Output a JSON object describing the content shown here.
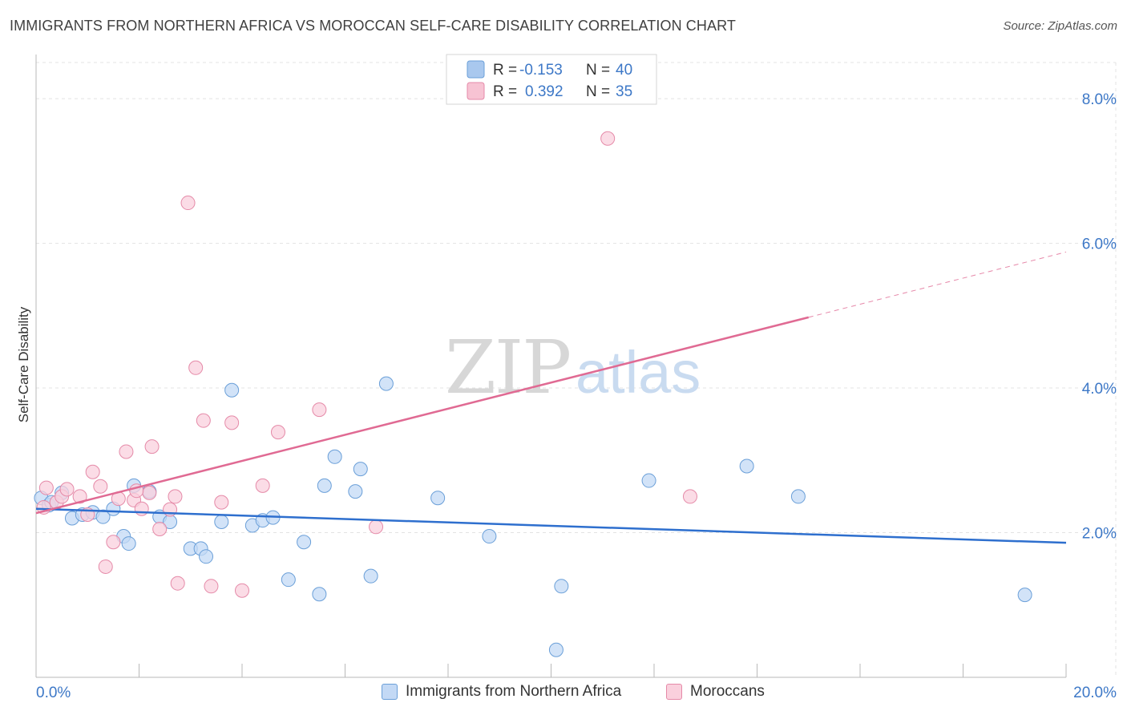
{
  "title": "IMMIGRANTS FROM NORTHERN AFRICA VS MOROCCAN SELF-CARE DISABILITY CORRELATION CHART",
  "source": "Source: ZipAtlas.com",
  "watermark": {
    "zip": "ZIP",
    "atlas": "atlas"
  },
  "legend": {
    "r_label": "R =",
    "n_label": "N =",
    "rows": [
      {
        "r": "-0.153",
        "n": "40",
        "color": "#a9c8ee",
        "border": "#6a9fd8"
      },
      {
        "r": "0.392",
        "n": "35",
        "color": "#f7c3d3",
        "border": "#e58aa8"
      }
    ]
  },
  "bottom_legend": [
    {
      "label": "Immigrants from Northern Africa",
      "color": "#c3d9f5",
      "border": "#6a9fd8"
    },
    {
      "label": "Moroccans",
      "color": "#fad0dd",
      "border": "#e58aa8"
    }
  ],
  "chart_data": {
    "type": "scatter",
    "title": "IMMIGRANTS FROM NORTHERN AFRICA VS MOROCCAN SELF-CARE DISABILITY CORRELATION CHART",
    "xlabel": "",
    "ylabel": "Self-Care Disability",
    "xlim": [
      0,
      20
    ],
    "ylim": [
      0,
      8.5
    ],
    "x_tick_labels": [
      "0.0%",
      "20.0%"
    ],
    "y_ticks": [
      2,
      4,
      6,
      8
    ],
    "y_tick_labels": [
      "2.0%",
      "4.0%",
      "6.0%",
      "8.0%"
    ],
    "grid": true,
    "legend_position": "top-center",
    "series": [
      {
        "name": "Immigrants from Northern Africa",
        "color": "#6a9fd8",
        "fill": "#c3d9f5",
        "line_color": "#2e6fce",
        "r": -0.153,
        "n": 40,
        "trend": {
          "x0": 0,
          "y0": 2.33,
          "x1": 20,
          "y1": 1.86,
          "solid_until": 20
        },
        "points": [
          [
            0.1,
            2.48
          ],
          [
            0.25,
            2.38
          ],
          [
            0.5,
            2.55
          ],
          [
            0.7,
            2.2
          ],
          [
            0.9,
            2.25
          ],
          [
            1.1,
            2.28
          ],
          [
            1.3,
            2.22
          ],
          [
            1.5,
            2.33
          ],
          [
            1.7,
            1.95
          ],
          [
            1.9,
            2.65
          ],
          [
            1.8,
            1.85
          ],
          [
            2.2,
            2.57
          ],
          [
            2.4,
            2.22
          ],
          [
            2.6,
            2.15
          ],
          [
            3.0,
            1.78
          ],
          [
            3.2,
            1.78
          ],
          [
            3.3,
            1.67
          ],
          [
            3.6,
            2.15
          ],
          [
            3.8,
            3.97
          ],
          [
            4.2,
            2.1
          ],
          [
            4.4,
            2.17
          ],
          [
            4.6,
            2.21
          ],
          [
            4.9,
            1.35
          ],
          [
            5.2,
            1.87
          ],
          [
            5.5,
            1.15
          ],
          [
            5.6,
            2.65
          ],
          [
            5.8,
            3.05
          ],
          [
            6.2,
            2.57
          ],
          [
            6.3,
            2.88
          ],
          [
            6.5,
            1.4
          ],
          [
            6.8,
            4.06
          ],
          [
            7.8,
            2.48
          ],
          [
            8.8,
            1.95
          ],
          [
            10.1,
            0.38
          ],
          [
            10.2,
            1.26
          ],
          [
            11.9,
            2.72
          ],
          [
            13.8,
            2.92
          ],
          [
            14.8,
            2.5
          ],
          [
            19.2,
            1.14
          ],
          [
            0.3,
            2.42
          ]
        ]
      },
      {
        "name": "Moroccans",
        "color": "#e58aa8",
        "fill": "#fad0dd",
        "line_color": "#e06a93",
        "r": 0.392,
        "n": 35,
        "trend": {
          "x0": 0,
          "y0": 2.27,
          "x1": 20,
          "y1": 5.88,
          "solid_until": 15
        },
        "points": [
          [
            0.2,
            2.62
          ],
          [
            0.4,
            2.42
          ],
          [
            0.5,
            2.5
          ],
          [
            0.6,
            2.6
          ],
          [
            0.85,
            2.5
          ],
          [
            1.0,
            2.25
          ],
          [
            1.1,
            2.84
          ],
          [
            1.25,
            2.64
          ],
          [
            1.35,
            1.53
          ],
          [
            1.5,
            1.87
          ],
          [
            1.6,
            2.47
          ],
          [
            1.75,
            3.12
          ],
          [
            1.9,
            2.45
          ],
          [
            2.05,
            2.33
          ],
          [
            2.2,
            2.55
          ],
          [
            2.25,
            3.19
          ],
          [
            2.4,
            2.05
          ],
          [
            2.7,
            2.5
          ],
          [
            2.75,
            1.3
          ],
          [
            2.95,
            6.56
          ],
          [
            3.1,
            4.28
          ],
          [
            3.25,
            3.55
          ],
          [
            3.4,
            1.26
          ],
          [
            3.6,
            2.42
          ],
          [
            3.8,
            3.52
          ],
          [
            4.0,
            1.2
          ],
          [
            4.4,
            2.65
          ],
          [
            4.7,
            3.39
          ],
          [
            5.5,
            3.7
          ],
          [
            6.6,
            2.08
          ],
          [
            11.1,
            7.45
          ],
          [
            12.7,
            2.5
          ],
          [
            0.15,
            2.35
          ],
          [
            1.95,
            2.58
          ],
          [
            2.6,
            2.32
          ]
        ]
      }
    ]
  }
}
